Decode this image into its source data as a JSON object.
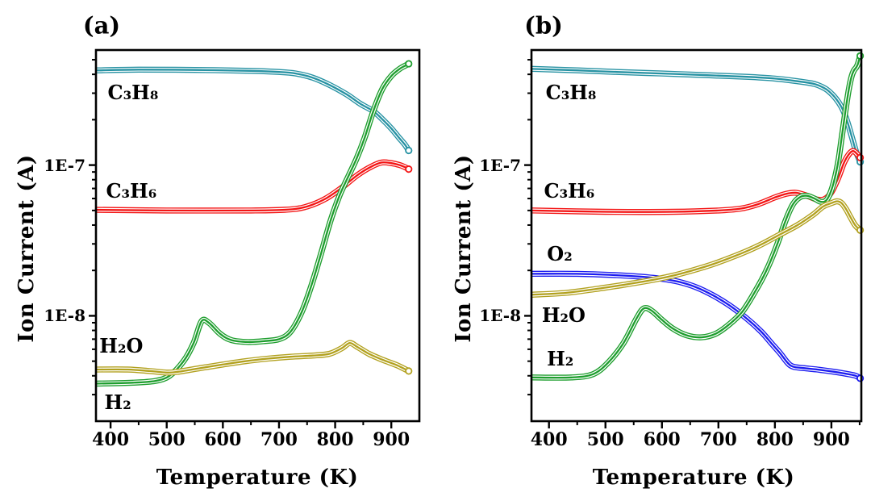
{
  "figure": {
    "background": "#ffffff",
    "text_color": "#000000",
    "axis_color": "#000000"
  },
  "chart_data": [
    {
      "type": "line",
      "id": "a",
      "label": "(a)",
      "xlabel": "Temperature  (K)",
      "ylabel": "Ion Current (A)",
      "legend_position": "none",
      "grid": false,
      "x_axis": {
        "min": 374,
        "max": 950,
        "unit": "K",
        "major_ticks": [
          400,
          500,
          600,
          700,
          800,
          900
        ],
        "minor_ticks": [
          450,
          550,
          650,
          750,
          850
        ]
      },
      "y_axis": {
        "scale": "log",
        "min": 2e-09,
        "max": 5.8e-07,
        "major_ticks": [
          {
            "value": 1e-07,
            "label": "1E-7"
          },
          {
            "value": 1e-08,
            "label": "1E-8"
          }
        ]
      },
      "series": [
        {
          "name": "C3H8",
          "label": "C₃H₈",
          "color": "#2792A3",
          "label_at": [
            440,
            3e-07
          ],
          "points": [
            [
              374,
              4.25e-07
            ],
            [
              450,
              4.3e-07
            ],
            [
              550,
              4.28e-07
            ],
            [
              650,
              4.22e-07
            ],
            [
              700,
              4.15e-07
            ],
            [
              730,
              4.05e-07
            ],
            [
              760,
              3.8e-07
            ],
            [
              790,
              3.4e-07
            ],
            [
              820,
              2.95e-07
            ],
            [
              845,
              2.55e-07
            ],
            [
              868,
              2.28e-07
            ],
            [
              885,
              2e-07
            ],
            [
              900,
              1.75e-07
            ],
            [
              915,
              1.5e-07
            ],
            [
              924,
              1.37e-07
            ],
            [
              931,
              1.25e-07
            ]
          ]
        },
        {
          "name": "C3H6",
          "label": "C₃H₆",
          "color": "#F31414",
          "label_at": [
            437,
            6.7e-08
          ],
          "points": [
            [
              374,
              5.05e-08
            ],
            [
              500,
              5e-08
            ],
            [
              650,
              5e-08
            ],
            [
              710,
              5.05e-08
            ],
            [
              745,
              5.25e-08
            ],
            [
              780,
              5.9e-08
            ],
            [
              810,
              7e-08
            ],
            [
              840,
              8.6e-08
            ],
            [
              865,
              9.8e-08
            ],
            [
              883,
              1.04e-07
            ],
            [
              900,
              1.03e-07
            ],
            [
              915,
              1e-07
            ],
            [
              924,
              9.7e-08
            ],
            [
              931,
              9.4e-08
            ]
          ]
        },
        {
          "name": "H2",
          "label": "H₂",
          "color": "#1E9E2E",
          "label_at": [
            413,
            2.64e-09
          ],
          "points": [
            [
              374,
              3.55e-09
            ],
            [
              440,
              3.6e-09
            ],
            [
              480,
              3.7e-09
            ],
            [
              505,
              4e-09
            ],
            [
              530,
              5e-09
            ],
            [
              548,
              6.6e-09
            ],
            [
              562,
              9.2e-09
            ],
            [
              575,
              9e-09
            ],
            [
              595,
              7.6e-09
            ],
            [
              615,
              6.9e-09
            ],
            [
              645,
              6.7e-09
            ],
            [
              675,
              6.8e-09
            ],
            [
              700,
              7e-09
            ],
            [
              720,
              7.8e-09
            ],
            [
              740,
              1.05e-08
            ],
            [
              758,
              1.6e-08
            ],
            [
              775,
              2.6e-08
            ],
            [
              792,
              4.3e-08
            ],
            [
              808,
              6.3e-08
            ],
            [
              822,
              8.2e-08
            ],
            [
              838,
              1.1e-07
            ],
            [
              852,
              1.5e-07
            ],
            [
              868,
              2.28e-07
            ],
            [
              884,
              3.2e-07
            ],
            [
              900,
              3.9e-07
            ],
            [
              915,
              4.35e-07
            ],
            [
              924,
              4.55e-07
            ],
            [
              931,
              4.7e-07
            ]
          ]
        },
        {
          "name": "H2O",
          "label": "H₂O",
          "color": "#B2A11F",
          "label_at": [
            419,
            6.3e-09
          ],
          "points": [
            [
              374,
              4.4e-09
            ],
            [
              430,
              4.4e-09
            ],
            [
              470,
              4.3e-09
            ],
            [
              500,
              4.2e-09
            ],
            [
              520,
              4.25e-09
            ],
            [
              560,
              4.5e-09
            ],
            [
              600,
              4.75e-09
            ],
            [
              640,
              5e-09
            ],
            [
              680,
              5.2e-09
            ],
            [
              720,
              5.35e-09
            ],
            [
              760,
              5.45e-09
            ],
            [
              790,
              5.6e-09
            ],
            [
              812,
              6.1e-09
            ],
            [
              826,
              6.6e-09
            ],
            [
              840,
              6.2e-09
            ],
            [
              860,
              5.6e-09
            ],
            [
              885,
              5.1e-09
            ],
            [
              910,
              4.7e-09
            ],
            [
              931,
              4.3e-09
            ]
          ]
        }
      ]
    },
    {
      "type": "line",
      "id": "b",
      "label": "(b)",
      "xlabel": "Temperature  (K)",
      "ylabel": "Ion Current (A)",
      "legend_position": "none",
      "grid": false,
      "x_axis": {
        "min": 369,
        "max": 953,
        "unit": "K",
        "major_ticks": [
          400,
          500,
          600,
          700,
          800,
          900
        ],
        "minor_ticks": [
          450,
          550,
          650,
          750,
          850,
          950
        ]
      },
      "y_axis": {
        "scale": "log",
        "min": 2e-09,
        "max": 5.8e-07,
        "major_ticks": [
          {
            "value": 1e-07,
            "label": "1E-7"
          },
          {
            "value": 1e-08,
            "label": "1E-8"
          }
        ]
      },
      "series": [
        {
          "name": "C3H8",
          "label": "C₃H₈",
          "color": "#2792A3",
          "label_at": [
            439,
            3e-07
          ],
          "points": [
            [
              369,
              4.35e-07
            ],
            [
              450,
              4.25e-07
            ],
            [
              520,
              4.15e-07
            ],
            [
              600,
              4.05e-07
            ],
            [
              680,
              3.95e-07
            ],
            [
              750,
              3.85e-07
            ],
            [
              800,
              3.75e-07
            ],
            [
              840,
              3.6e-07
            ],
            [
              870,
              3.45e-07
            ],
            [
              890,
              3.2e-07
            ],
            [
              903,
              2.9e-07
            ],
            [
              913,
              2.6e-07
            ],
            [
              921,
              2.3e-07
            ],
            [
              929,
              1.9e-07
            ],
            [
              937,
              1.5e-07
            ],
            [
              944,
              1.22e-07
            ],
            [
              951,
              1.05e-07
            ]
          ]
        },
        {
          "name": "C3H6",
          "label": "C₃H₆",
          "color": "#F31414",
          "label_at": [
            436,
            6.7e-08
          ],
          "points": [
            [
              369,
              5e-08
            ],
            [
              500,
              4.9e-08
            ],
            [
              620,
              4.9e-08
            ],
            [
              700,
              5e-08
            ],
            [
              740,
              5.15e-08
            ],
            [
              770,
              5.5e-08
            ],
            [
              800,
              6.1e-08
            ],
            [
              820,
              6.45e-08
            ],
            [
              837,
              6.55e-08
            ],
            [
              855,
              6.3e-08
            ],
            [
              875,
              5.9e-08
            ],
            [
              888,
              5.95e-08
            ],
            [
              900,
              6.6e-08
            ],
            [
              912,
              8.2e-08
            ],
            [
              922,
              1.03e-07
            ],
            [
              931,
              1.18e-07
            ],
            [
              938,
              1.24e-07
            ],
            [
              944,
              1.2e-07
            ],
            [
              951,
              1.12e-07
            ]
          ]
        },
        {
          "name": "O2",
          "label": "O₂",
          "color": "#1C1CF0",
          "label_at": [
            419,
            2.55e-08
          ],
          "points": [
            [
              369,
              1.9e-08
            ],
            [
              450,
              1.9e-08
            ],
            [
              520,
              1.86e-08
            ],
            [
              560,
              1.82e-08
            ],
            [
              600,
              1.76e-08
            ],
            [
              630,
              1.68e-08
            ],
            [
              660,
              1.55e-08
            ],
            [
              690,
              1.37e-08
            ],
            [
              720,
              1.17e-08
            ],
            [
              750,
              9.6e-09
            ],
            [
              775,
              7.9e-09
            ],
            [
              795,
              6.5e-09
            ],
            [
              810,
              5.6e-09
            ],
            [
              822,
              4.9e-09
            ],
            [
              832,
              4.6e-09
            ],
            [
              850,
              4.5e-09
            ],
            [
              875,
              4.4e-09
            ],
            [
              905,
              4.25e-09
            ],
            [
              930,
              4.1e-09
            ],
            [
              943,
              4e-09
            ],
            [
              951,
              3.85e-09
            ]
          ]
        },
        {
          "name": "H2",
          "label": "H₂",
          "color": "#1E9E2E",
          "label_at": [
            420,
            5.15e-09
          ],
          "points": [
            [
              369,
              3.9e-09
            ],
            [
              440,
              3.9e-09
            ],
            [
              478,
              4.1e-09
            ],
            [
              505,
              4.9e-09
            ],
            [
              532,
              6.6e-09
            ],
            [
              555,
              9.6e-09
            ],
            [
              568,
              1.12e-08
            ],
            [
              582,
              1.08e-08
            ],
            [
              600,
              9.4e-09
            ],
            [
              620,
              8.2e-09
            ],
            [
              645,
              7.4e-09
            ],
            [
              670,
              7.2e-09
            ],
            [
              695,
              7.6e-09
            ],
            [
              718,
              8.7e-09
            ],
            [
              742,
              1.06e-08
            ],
            [
              765,
              1.45e-08
            ],
            [
              785,
              2e-08
            ],
            [
              803,
              2.9e-08
            ],
            [
              818,
              4.2e-08
            ],
            [
              832,
              5.5e-08
            ],
            [
              845,
              6.15e-08
            ],
            [
              857,
              6.25e-08
            ],
            [
              870,
              6e-08
            ],
            [
              882,
              5.7e-08
            ],
            [
              892,
              5.9e-08
            ],
            [
              902,
              7.2e-08
            ],
            [
              911,
              1e-07
            ],
            [
              918,
              1.5e-07
            ],
            [
              925,
              2.3e-07
            ],
            [
              931,
              3.2e-07
            ],
            [
              936,
              3.9e-07
            ],
            [
              940,
              4.25e-07
            ],
            [
              944,
              4.45e-07
            ],
            [
              947,
              4.7e-07
            ],
            [
              951,
              5.3e-07
            ]
          ]
        },
        {
          "name": "H2O",
          "label": "H₂O",
          "color": "#B2A11F",
          "label_at": [
            426,
            1.01e-08
          ],
          "points": [
            [
              369,
              1.38e-08
            ],
            [
              430,
              1.42e-08
            ],
            [
              480,
              1.5e-08
            ],
            [
              530,
              1.6e-08
            ],
            [
              580,
              1.72e-08
            ],
            [
              615,
              1.83e-08
            ],
            [
              650,
              1.98e-08
            ],
            [
              690,
              2.2e-08
            ],
            [
              730,
              2.5e-08
            ],
            [
              770,
              2.9e-08
            ],
            [
              805,
              3.4e-08
            ],
            [
              840,
              4e-08
            ],
            [
              868,
              4.7e-08
            ],
            [
              885,
              5.3e-08
            ],
            [
              900,
              5.6e-08
            ],
            [
              910,
              5.75e-08
            ],
            [
              918,
              5.6e-08
            ],
            [
              926,
              5.1e-08
            ],
            [
              934,
              4.5e-08
            ],
            [
              942,
              4e-08
            ],
            [
              951,
              3.7e-08
            ]
          ]
        }
      ]
    }
  ]
}
